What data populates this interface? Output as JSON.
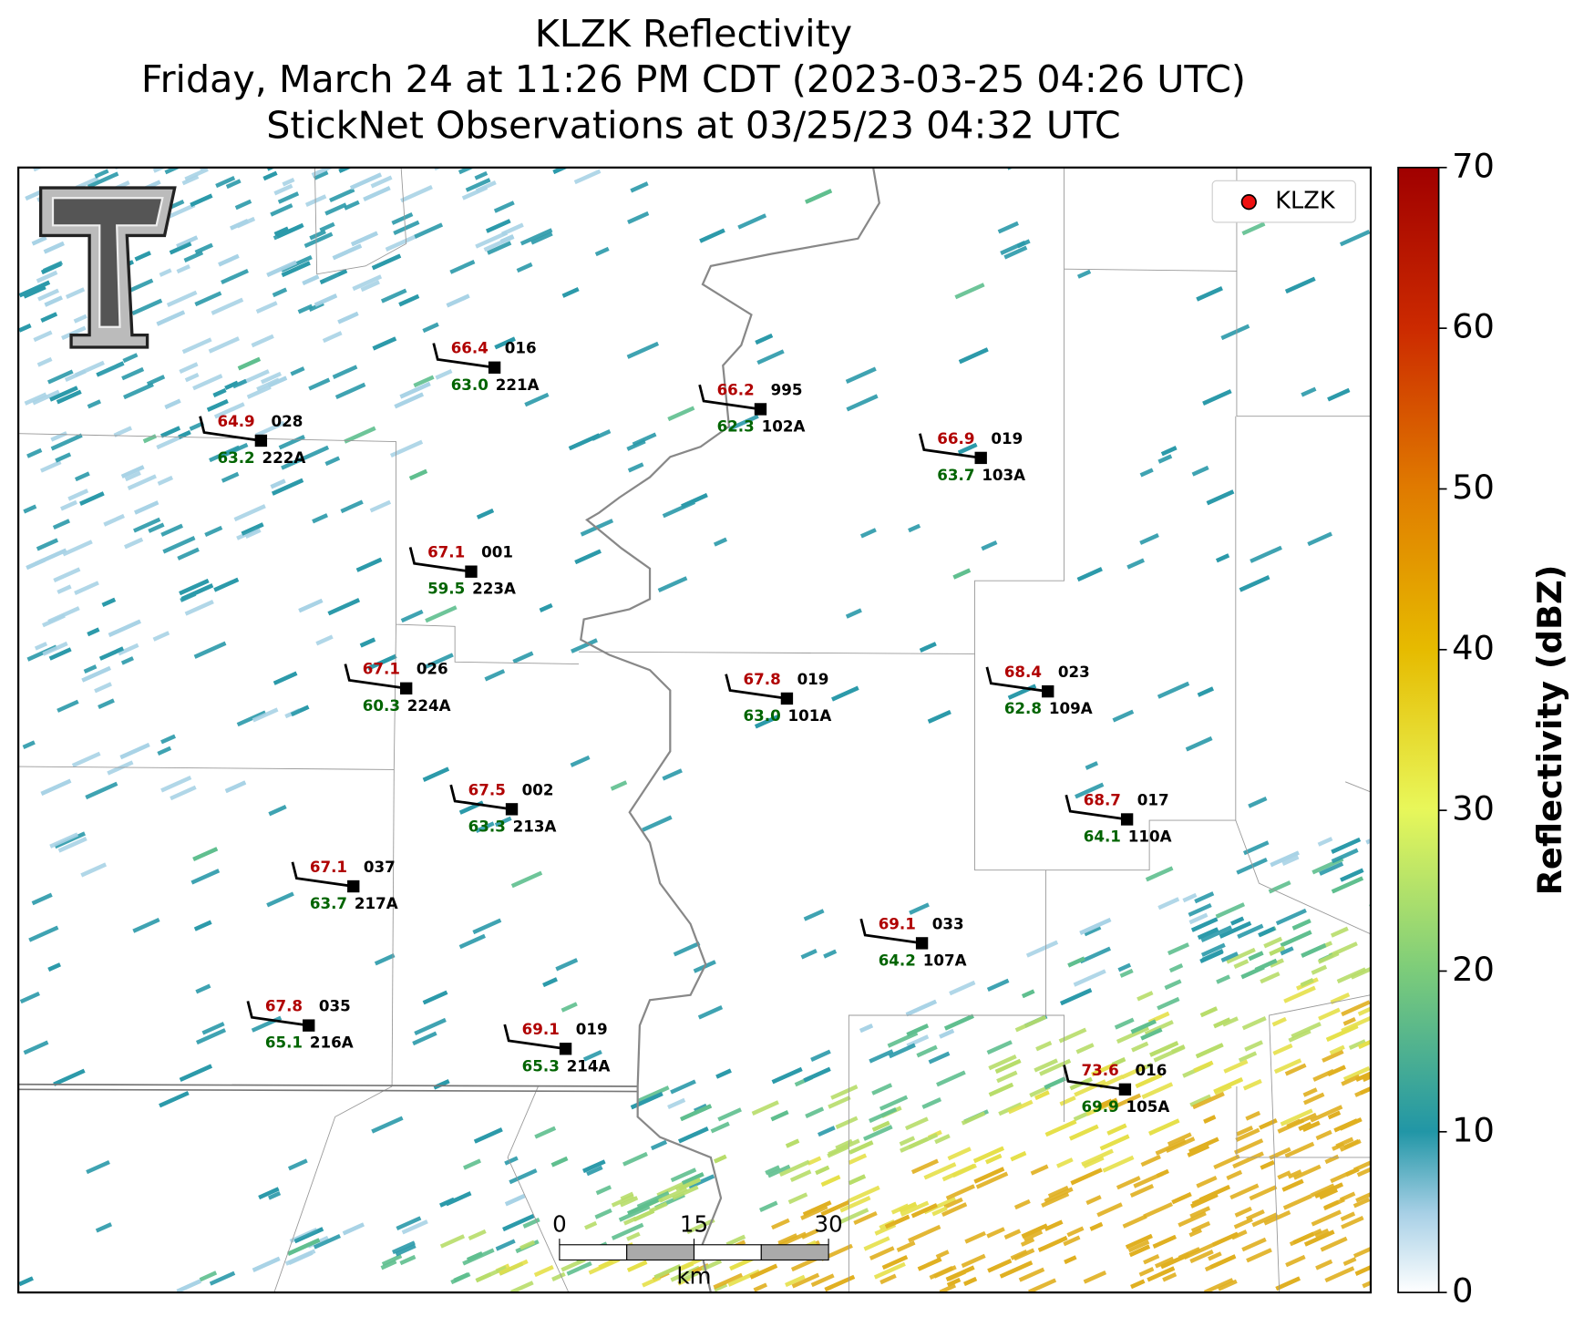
{
  "title_lines": [
    "KLZK Reflectivity",
    "Friday, March 24 at 11:26 PM CDT (2023-03-25 04:26 UTC)",
    "StickNet Observations at 03/25/23 04:32 UTC"
  ],
  "legend": {
    "label": "KLZK",
    "color": "#ee1111"
  },
  "stations": [
    {
      "id": "221A",
      "temperature": "66.4",
      "dewpoint": "63.0",
      "pressure": "016"
    },
    {
      "id": "222A",
      "temperature": "64.9",
      "dewpoint": "63.2",
      "pressure": "028"
    },
    {
      "id": "102A",
      "temperature": "66.2",
      "dewpoint": "62.3",
      "pressure": "995"
    },
    {
      "id": "103A",
      "temperature": "66.9",
      "dewpoint": "63.7",
      "pressure": "019"
    },
    {
      "id": "223A",
      "temperature": "67.1",
      "dewpoint": "59.5",
      "pressure": "001"
    },
    {
      "id": "224A",
      "temperature": "67.1",
      "dewpoint": "60.3",
      "pressure": "026"
    },
    {
      "id": "101A",
      "temperature": "67.8",
      "dewpoint": "63.0",
      "pressure": "019"
    },
    {
      "id": "109A",
      "temperature": "68.4",
      "dewpoint": "62.8",
      "pressure": "023"
    },
    {
      "id": "213A",
      "temperature": "67.5",
      "dewpoint": "63.3",
      "pressure": "002"
    },
    {
      "id": "110A",
      "temperature": "68.7",
      "dewpoint": "64.1",
      "pressure": "017"
    },
    {
      "id": "217A",
      "temperature": "67.1",
      "dewpoint": "63.7",
      "pressure": "037"
    },
    {
      "id": "107A",
      "temperature": "69.1",
      "dewpoint": "64.2",
      "pressure": "033"
    },
    {
      "id": "216A",
      "temperature": "67.8",
      "dewpoint": "65.1",
      "pressure": "035"
    },
    {
      "id": "214A",
      "temperature": "69.1",
      "dewpoint": "65.3",
      "pressure": "019"
    },
    {
      "id": "105A",
      "temperature": "73.6",
      "dewpoint": "69.9",
      "pressure": "016"
    }
  ],
  "colorbar": {
    "label": "Reflectivity (dBZ)",
    "lim": [
      0,
      70
    ],
    "ticks": [
      0,
      10,
      20,
      30,
      40,
      50,
      60,
      70
    ]
  },
  "scale_bar": {
    "ticks": [
      0,
      15,
      30
    ],
    "unit": "km"
  }
}
